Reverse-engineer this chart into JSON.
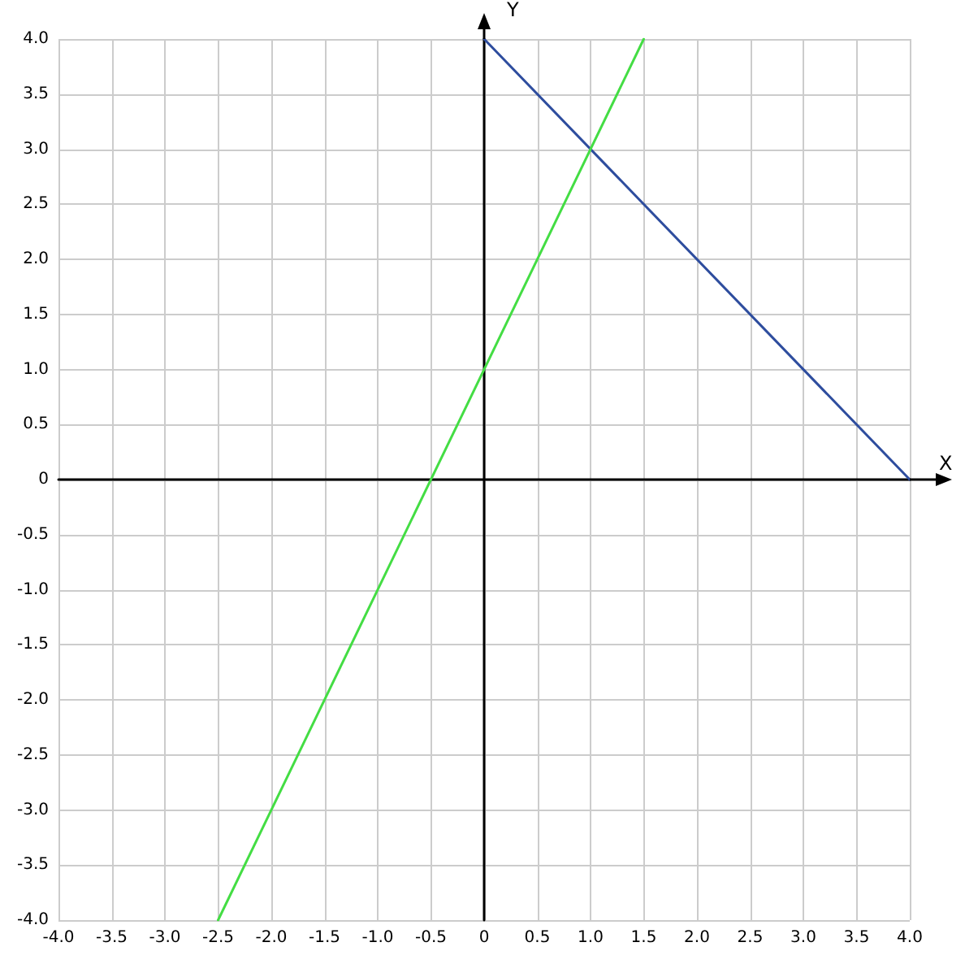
{
  "chart_data": {
    "type": "line",
    "xlabel": "X",
    "ylabel": "Y",
    "grid": true,
    "marker": "none",
    "line_style": "solid",
    "xlim": [
      -4,
      4
    ],
    "ylim": [
      -4,
      4
    ],
    "xticks": [
      {
        "value": -4,
        "label": "-4.0"
      },
      {
        "value": -3.5,
        "label": "-3.5"
      },
      {
        "value": -3,
        "label": "-3.0"
      },
      {
        "value": -2.5,
        "label": "-2.5"
      },
      {
        "value": -2,
        "label": "-2.0"
      },
      {
        "value": -1.5,
        "label": "-1.5"
      },
      {
        "value": -1,
        "label": "-1.0"
      },
      {
        "value": -0.5,
        "label": "-0.5"
      },
      0,
      {
        "value": 0.5,
        "label": "0.5"
      },
      {
        "value": 1,
        "label": "1.0"
      },
      {
        "value": 1.5,
        "label": "1.5"
      },
      {
        "value": 2,
        "label": "2.0"
      },
      {
        "value": 2.5,
        "label": "2.5"
      },
      {
        "value": 3,
        "label": "3.0"
      },
      {
        "value": 3.5,
        "label": "3.5"
      },
      {
        "value": 4,
        "label": "4.0"
      }
    ],
    "yticks": [
      {
        "value": -4,
        "label": "-4.0"
      },
      {
        "value": -3.5,
        "label": "-3.5"
      },
      {
        "value": -3,
        "label": "-3.0"
      },
      {
        "value": -2.5,
        "label": "-2.5"
      },
      {
        "value": -2,
        "label": "-2.0"
      },
      {
        "value": -1.5,
        "label": "-1.5"
      },
      {
        "value": -1,
        "label": "-1.0"
      },
      {
        "value": -0.5,
        "label": "-0.5"
      },
      0,
      {
        "value": 0.5,
        "label": "0.5"
      },
      {
        "value": 1,
        "label": "1.0"
      },
      {
        "value": 1.5,
        "label": "1.5"
      },
      {
        "value": 2,
        "label": "2.0"
      },
      {
        "value": 2.5,
        "label": "2.5"
      },
      {
        "value": 3,
        "label": "3.0"
      },
      {
        "value": 3.5,
        "label": "3.5"
      },
      {
        "value": 4,
        "label": "4.0"
      }
    ],
    "series": [
      {
        "color": "#2e4d9e",
        "x": [
          0,
          4
        ],
        "values": [
          4,
          0
        ]
      },
      {
        "color": "#44dd44",
        "x": [
          -2.5,
          1.5
        ],
        "values": [
          -4,
          4
        ]
      }
    ]
  }
}
